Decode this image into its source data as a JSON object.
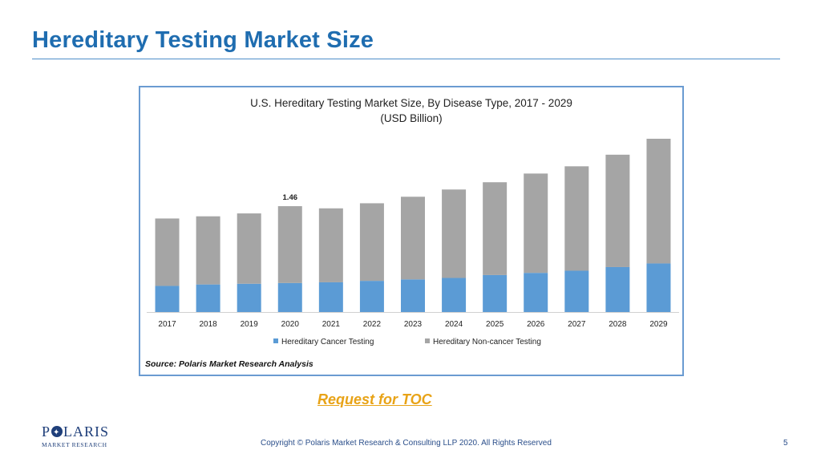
{
  "slide": {
    "title": "Hereditary Testing Market Size",
    "toc_link": "Request for TOC",
    "logo_main_left": "P",
    "logo_main_right": "LARIS",
    "logo_sub": "MARKET RESEARCH",
    "copyright": "Copyright © Polaris Market Research & Consulting LLP 2020. All Rights Reserved",
    "page_number": "5"
  },
  "chart_data": {
    "type": "bar",
    "stacked": true,
    "title_line1": "U.S. Hereditary Testing Market Size, By Disease Type, 2017 - 2029",
    "title_line2": "(USD Billion)",
    "categories": [
      "2017",
      "2018",
      "2019",
      "2020",
      "2021",
      "2022",
      "2023",
      "2024",
      "2025",
      "2026",
      "2027",
      "2028",
      "2029"
    ],
    "series": [
      {
        "name": "Hereditary Cancer Testing",
        "color": "#5b9bd5",
        "values": [
          0.36,
          0.38,
          0.39,
          0.4,
          0.41,
          0.43,
          0.45,
          0.47,
          0.51,
          0.54,
          0.57,
          0.62,
          0.67
        ]
      },
      {
        "name": "Hereditary Non-cancer Testing",
        "color": "#a5a5a5",
        "values": [
          0.93,
          0.94,
          0.97,
          1.06,
          1.02,
          1.07,
          1.14,
          1.22,
          1.28,
          1.37,
          1.44,
          1.55,
          1.72
        ]
      }
    ],
    "data_labels": [
      {
        "category": "2020",
        "text": "1.46"
      }
    ],
    "ylim": [
      0,
      2.6
    ],
    "grid": false,
    "legend_position": "bottom",
    "source": "Source: Polaris  Market Research Analysis"
  }
}
